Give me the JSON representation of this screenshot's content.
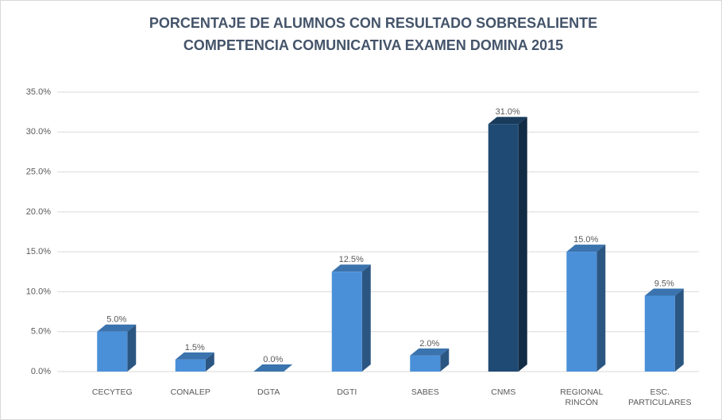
{
  "chart_data": {
    "type": "bar3d",
    "title": [
      "PORCENTAJE DE ALUMNOS CON RESULTADO SOBRESALIENTE",
      "COMPETENCIA COMUNICATIVA EXAMEN DOMINA 2015"
    ],
    "categories": [
      "CECYTEG",
      "CONALEP",
      "DGTA",
      "DGTI",
      "SABES",
      "CNMS",
      "REGIONAL RINCÓN",
      "ESC. PARTICULARES"
    ],
    "values": [
      5.0,
      1.5,
      0,
      12.5,
      2.0,
      31.0,
      15.0,
      9.5
    ],
    "value_labels": [
      "5.0%",
      "1.5%",
      "0.0%",
      "12.5%",
      "2.0%",
      "31.0%",
      "15.0%",
      "9.5%"
    ],
    "colors": [
      "#4a90d9",
      "#4a90d9",
      "#4a90d9",
      "#4a90d9",
      "#4a90d9",
      "#1f4a73",
      "#4a90d9",
      "#4a90d9"
    ],
    "ylim": [
      0,
      35
    ],
    "yticks": [
      {
        "value": 0,
        "label": "0.0%"
      },
      {
        "value": 5,
        "label": "5.0%"
      },
      {
        "value": 10,
        "label": "10.0%"
      },
      {
        "value": 15,
        "label": "15.0%"
      },
      {
        "value": 20,
        "label": "20.0%"
      },
      {
        "value": 25,
        "label": "25.0%"
      },
      {
        "value": 30,
        "label": "30.0%"
      },
      {
        "value": 35,
        "label": "35.0%"
      }
    ],
    "grid": true
  }
}
